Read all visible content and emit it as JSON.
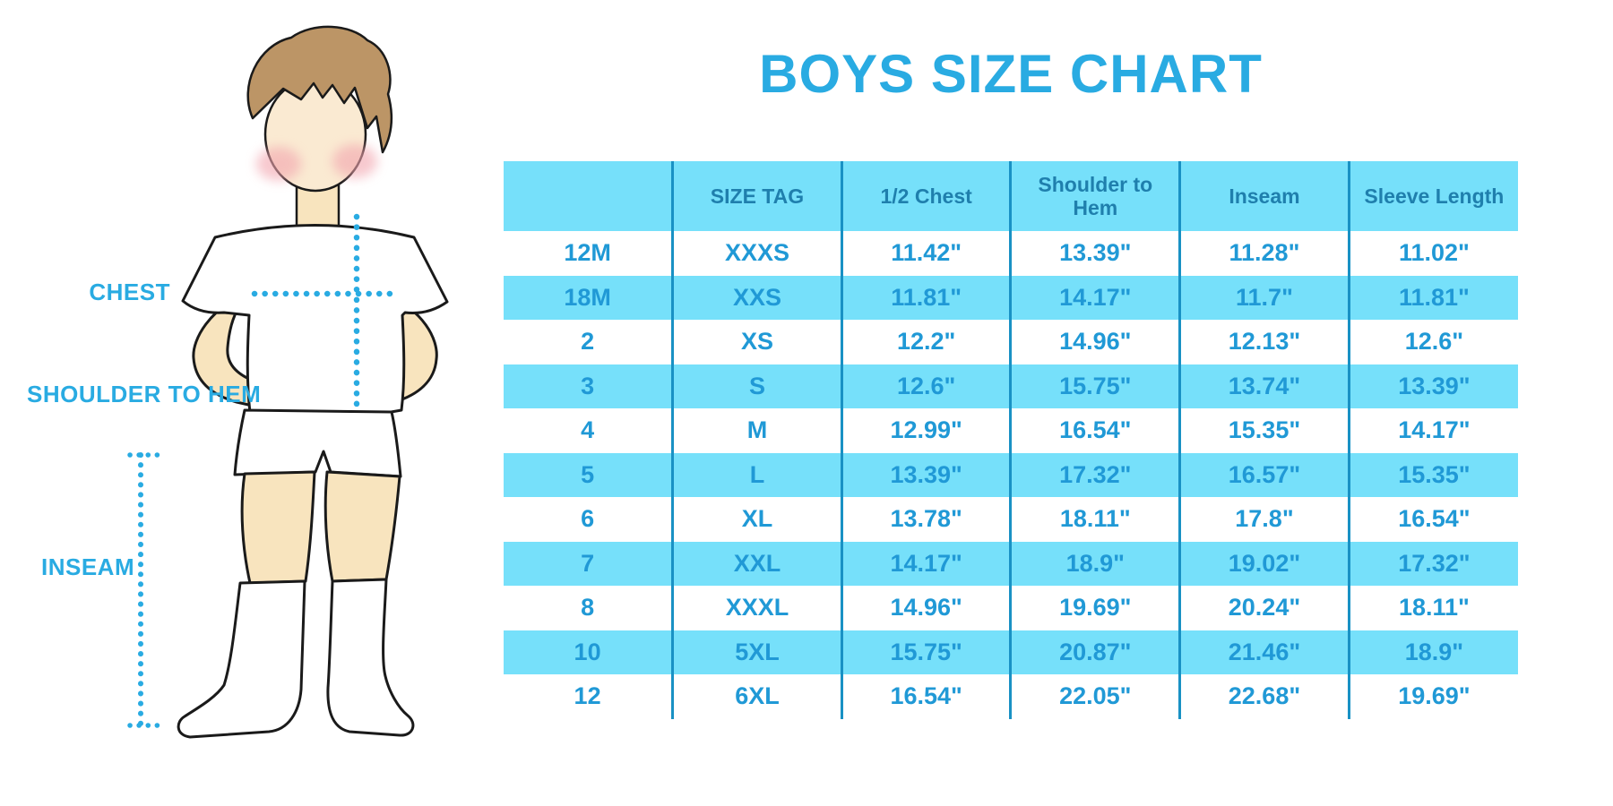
{
  "title": "BOYS SIZE CHART",
  "illustration": {
    "figure": "boy-mannequin",
    "labels": {
      "chest": "CHEST",
      "shoulder_to_hem": "SHOULDER TO HEM",
      "inseam": "INSEAM"
    }
  },
  "table": {
    "headers": [
      "",
      "SIZE TAG",
      "1/2 Chest",
      "Shoulder to Hem",
      "Inseam",
      "Sleeve Length"
    ],
    "rows": [
      [
        "12M",
        "XXXS",
        "11.42\"",
        "13.39\"",
        "11.28\"",
        "11.02\""
      ],
      [
        "18M",
        "XXS",
        "11.81\"",
        "14.17\"",
        "11.7\"",
        "11.81\""
      ],
      [
        "2",
        "XS",
        "12.2\"",
        "14.96\"",
        "12.13\"",
        "12.6\""
      ],
      [
        "3",
        "S",
        "12.6\"",
        "15.75\"",
        "13.74\"",
        "13.39\""
      ],
      [
        "4",
        "M",
        "12.99\"",
        "16.54\"",
        "15.35\"",
        "14.17\""
      ],
      [
        "5",
        "L",
        "13.39\"",
        "17.32\"",
        "16.57\"",
        "15.35\""
      ],
      [
        "6",
        "XL",
        "13.78\"",
        "18.11\"",
        "17.8\"",
        "16.54\""
      ],
      [
        "7",
        "XXL",
        "14.17\"",
        "18.9\"",
        "19.02\"",
        "17.32\""
      ],
      [
        "8",
        "XXXL",
        "14.96\"",
        "19.69\"",
        "20.24\"",
        "18.11\""
      ],
      [
        "10",
        "5XL",
        "15.75\"",
        "20.87\"",
        "21.46\"",
        "18.9\""
      ],
      [
        "12",
        "6XL",
        "16.54\"",
        "22.05\"",
        "22.68\"",
        "19.69\""
      ]
    ]
  },
  "colors": {
    "accent_blue": "#29ABE2",
    "cell_text_blue": "#2099D6",
    "header_text_blue": "#1F7FAD",
    "stripe_cyan": "#76E0FA",
    "divider_blue": "#1991C4",
    "skin": "#F8E4BE",
    "face": "#FAEAD2",
    "hair_brown": "#BC9566",
    "outline": "#1a1a1a"
  }
}
